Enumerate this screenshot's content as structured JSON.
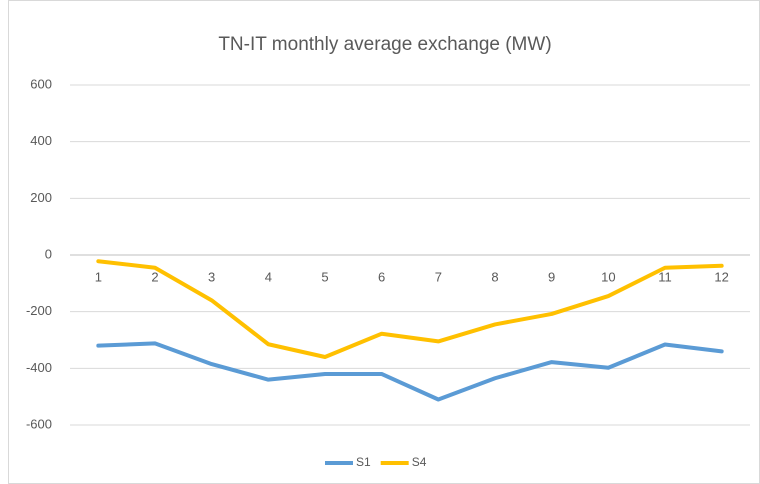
{
  "chart_data": {
    "type": "line",
    "title": "TN-IT monthly average exchange (MW)",
    "categories": [
      "1",
      "2",
      "3",
      "4",
      "5",
      "6",
      "7",
      "8",
      "9",
      "10",
      "11",
      "12"
    ],
    "series": [
      {
        "name": "S1",
        "color": "#5b9bd5",
        "values": [
          -320,
          -312,
          -385,
          -440,
          -420,
          -420,
          -510,
          -435,
          -378,
          -398,
          -316,
          -340
        ]
      },
      {
        "name": "S4",
        "color": "#ffc000",
        "values": [
          -22,
          -45,
          -160,
          -315,
          -360,
          -278,
          -305,
          -245,
          -208,
          -145,
          -45,
          -38
        ]
      }
    ],
    "ylim": [
      -600,
      600
    ],
    "yticks": [
      -600,
      -400,
      -200,
      0,
      200,
      400,
      600
    ],
    "grid": true,
    "legend": "bottom"
  }
}
